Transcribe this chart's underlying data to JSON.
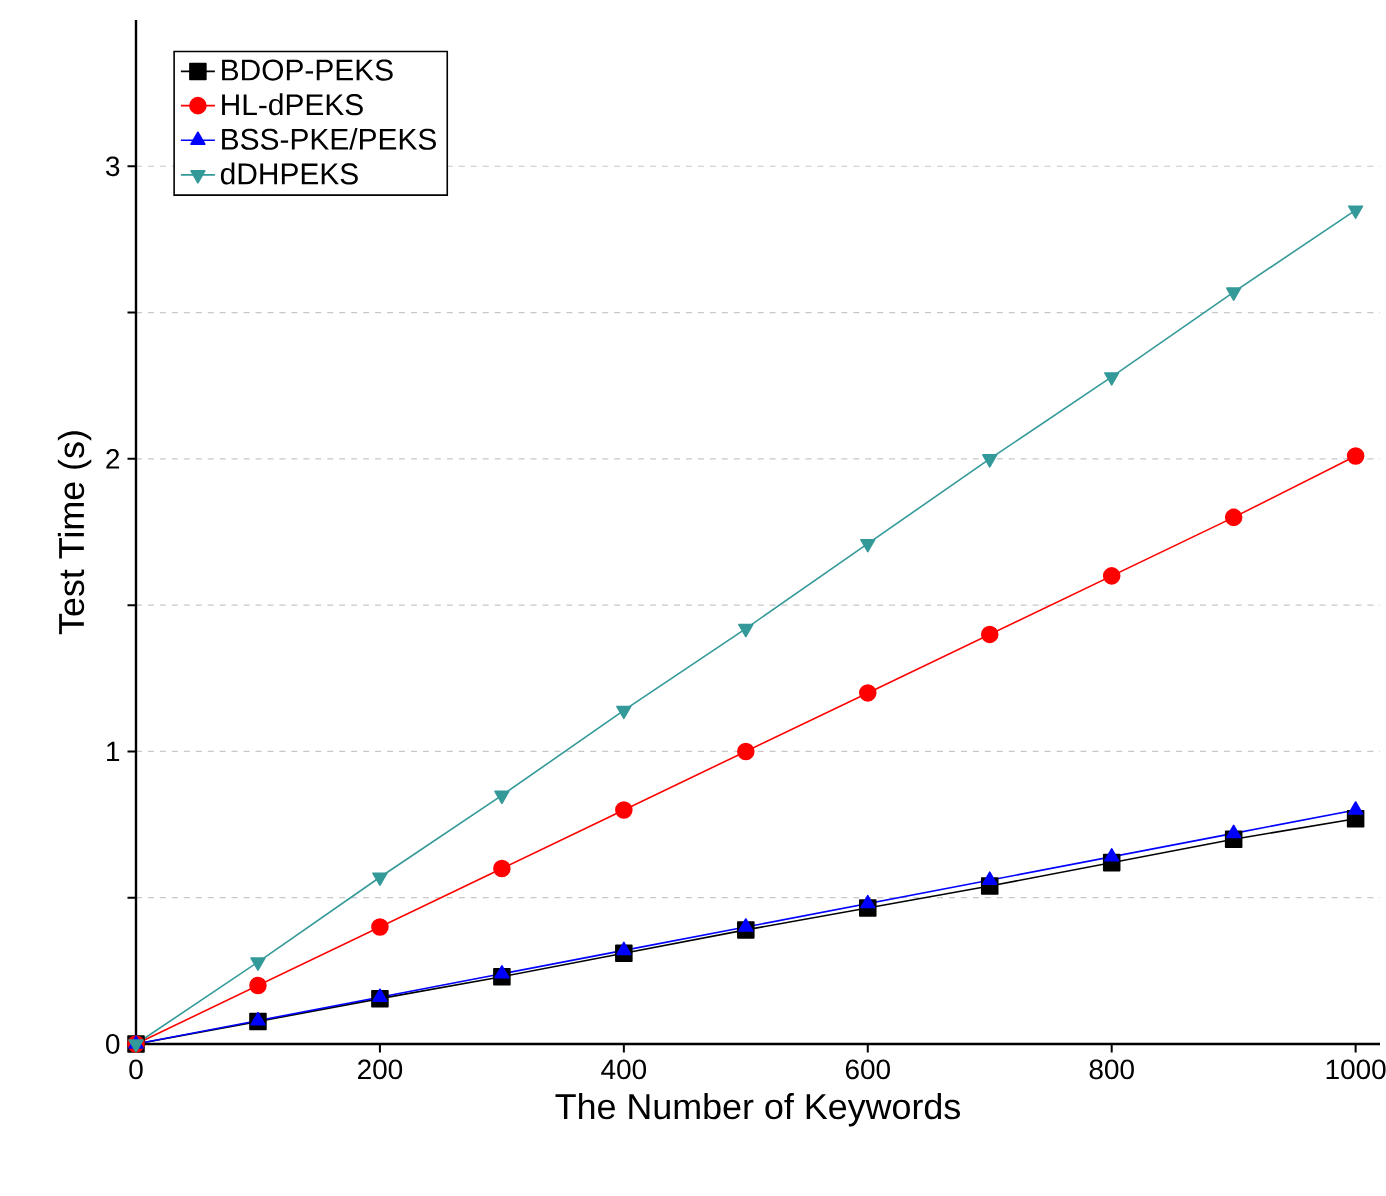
{
  "chart_data": {
    "type": "line",
    "xlabel": "The Number of Keywords",
    "ylabel": "Test Time (s)",
    "x": [
      0,
      100,
      200,
      300,
      400,
      500,
      600,
      700,
      800,
      900,
      1000
    ],
    "xlim": [
      0,
      1020
    ],
    "xticks": [
      0,
      200,
      400,
      600,
      800,
      1000
    ],
    "ylim": [
      0,
      3.5
    ],
    "yticks": [
      0,
      {
        "value": 0.5,
        "label": null
      },
      1,
      {
        "value": 1.5,
        "label": null
      },
      2,
      {
        "value": 2.5,
        "label": null
      },
      3
    ],
    "grid": "y",
    "legend": "top left",
    "series": [
      {
        "name": "BDOP-PEKS",
        "color": "#000000",
        "marker": "square",
        "values": [
          0,
          0.077,
          0.155,
          0.23,
          0.31,
          0.39,
          0.465,
          0.54,
          0.62,
          0.7,
          0.77
        ]
      },
      {
        "name": "HL-dPEKS",
        "color": "#ff0000",
        "marker": "circle",
        "values": [
          0,
          0.2,
          0.4,
          0.6,
          0.8,
          1.0,
          1.2,
          1.4,
          1.6,
          1.8,
          2.01
        ]
      },
      {
        "name": "BSS-PKE/PEKS",
        "color": "#0000ff",
        "marker": "triangle",
        "values": [
          0,
          0.08,
          0.16,
          0.24,
          0.32,
          0.4,
          0.48,
          0.56,
          0.64,
          0.72,
          0.8
        ]
      },
      {
        "name": "dDHPEKS",
        "color": "#339999",
        "marker": "triangle-down",
        "values": [
          0,
          0.28,
          0.57,
          0.85,
          1.14,
          1.42,
          1.71,
          2.0,
          2.28,
          2.57,
          2.85
        ]
      }
    ]
  }
}
